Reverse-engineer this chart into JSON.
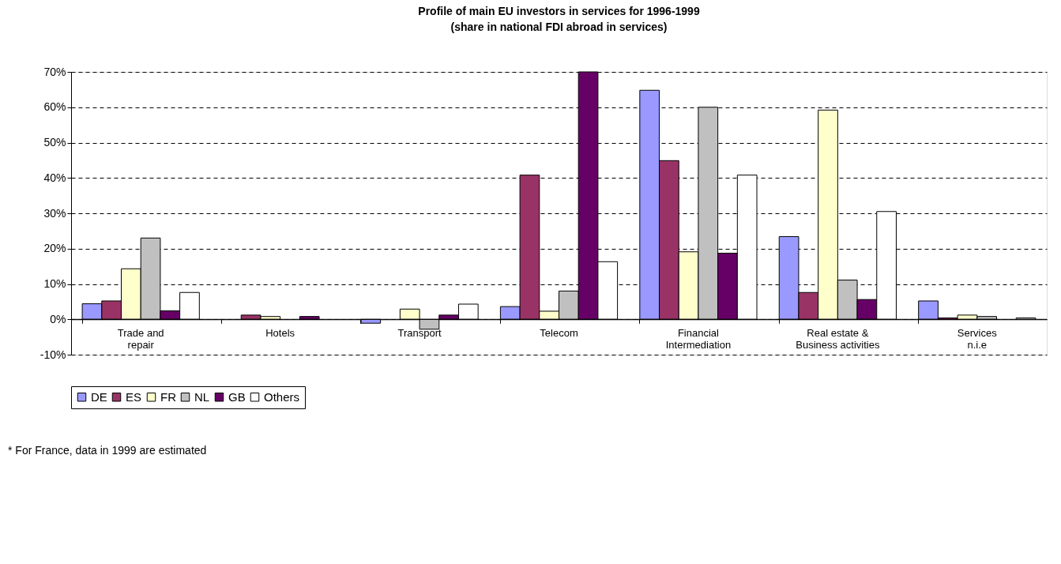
{
  "chart_data": {
    "type": "bar",
    "title": "Profile of main EU investors in services for 1996-1999",
    "subtitle": "(share in national FDI abroad in services)",
    "categories": [
      "Trade and\nrepair",
      "Hotels",
      "Transport",
      "Telecom",
      "Financial\nIntermediation",
      "Real estate &\nBusiness activities",
      "Services\nn.i.e"
    ],
    "series": [
      {
        "name": "DE",
        "color": "#9999ff",
        "values": [
          4.4,
          null,
          -1.1,
          3.6,
          64.8,
          23.4,
          5.2
        ]
      },
      {
        "name": "ES",
        "color": "#993366",
        "values": [
          5.2,
          1.2,
          null,
          40.8,
          44.9,
          7.6,
          0.4
        ]
      },
      {
        "name": "FR",
        "color": "#ffffcc",
        "values": [
          14.3,
          0.8,
          2.9,
          2.3,
          19.1,
          59.2,
          1.2
        ]
      },
      {
        "name": "NL",
        "color": "#c0c0c0",
        "values": [
          23.0,
          null,
          -2.8,
          8.0,
          60.0,
          11.1,
          0.8
        ]
      },
      {
        "name": "GB",
        "color": "#660066",
        "values": [
          2.4,
          0.8,
          1.2,
          70.0,
          18.7,
          5.6,
          null
        ]
      },
      {
        "name": "Others",
        "color": "#ffffff",
        "values": [
          7.6,
          null,
          4.3,
          16.3,
          40.8,
          30.5,
          0.4
        ]
      }
    ],
    "ylim": [
      -10,
      70
    ],
    "yticks": [
      {
        "value": -10,
        "label": "-10%"
      },
      {
        "value": 0,
        "label": "0%"
      },
      {
        "value": 10,
        "label": "10%"
      },
      {
        "value": 20,
        "label": "20%"
      },
      {
        "value": 30,
        "label": "30%"
      },
      {
        "value": 40,
        "label": "40%"
      },
      {
        "value": 50,
        "label": "50%"
      },
      {
        "value": 60,
        "label": "60%"
      },
      {
        "value": 70,
        "label": "70%"
      }
    ],
    "grid": "y",
    "legend": "bottom",
    "annotations": [
      "* For France, data in 1999 are estimated"
    ]
  }
}
